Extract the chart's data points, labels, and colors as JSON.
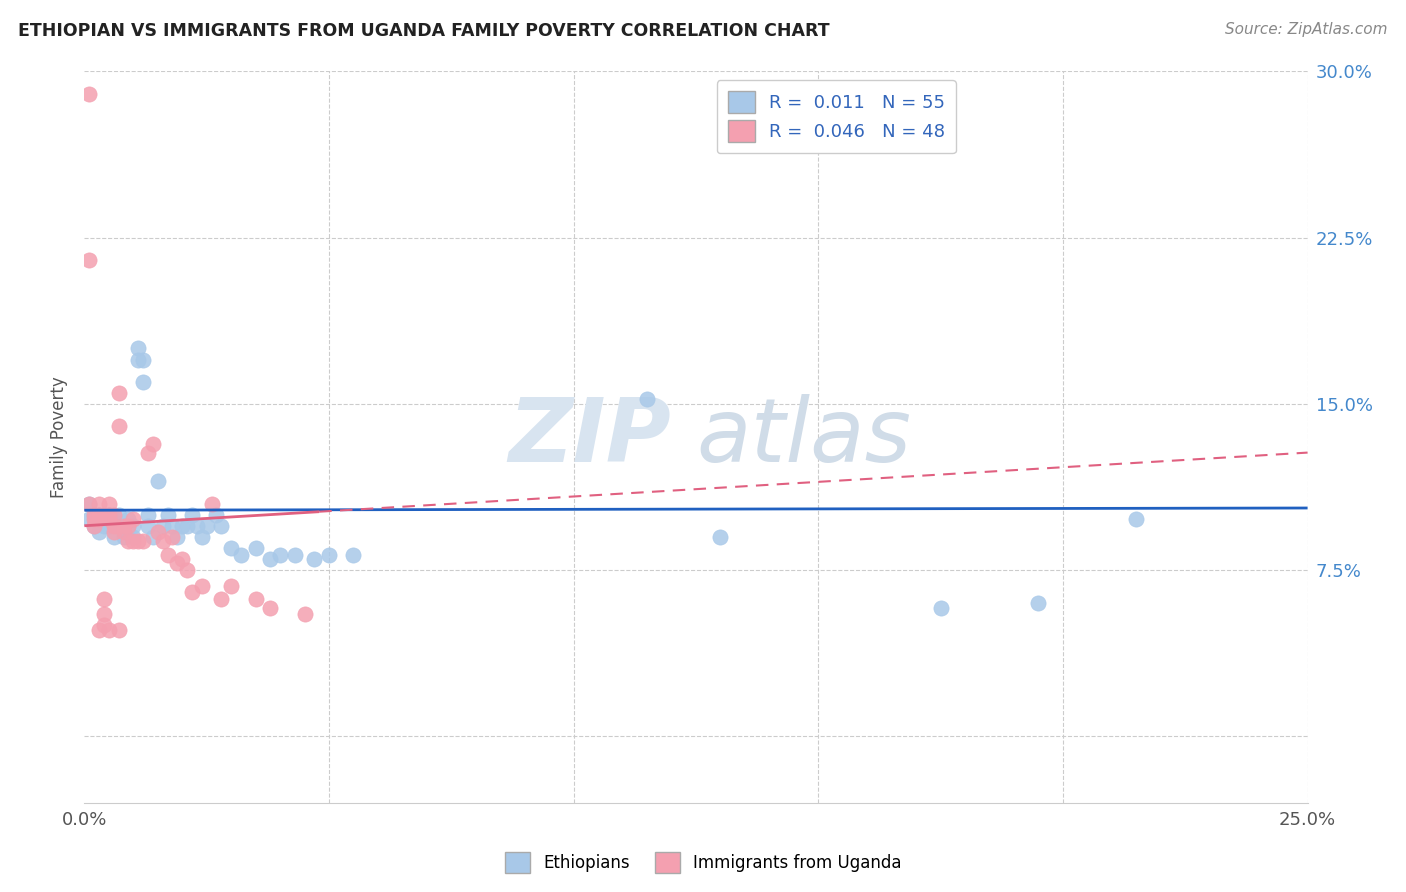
{
  "title": "ETHIOPIAN VS IMMIGRANTS FROM UGANDA FAMILY POVERTY CORRELATION CHART",
  "source": "Source: ZipAtlas.com",
  "ylabel": "Family Poverty",
  "x_min": 0.0,
  "x_max": 0.25,
  "y_min": -0.03,
  "y_max": 0.3,
  "y_ticks": [
    0.0,
    0.075,
    0.15,
    0.225,
    0.3
  ],
  "y_tick_labels_right": [
    "",
    "7.5%",
    "15.0%",
    "22.5%",
    "30.0%"
  ],
  "blue_R": "0.011",
  "blue_N": "55",
  "pink_R": "0.046",
  "pink_N": "48",
  "blue_color": "#a8c8e8",
  "pink_color": "#f4a0b0",
  "trend_blue_color": "#2060c0",
  "trend_pink_color": "#e06080",
  "watermark_zip": "ZIP",
  "watermark_atlas": "atlas",
  "legend_blue_label": "Ethiopians",
  "legend_pink_label": "Immigrants from Uganda",
  "blue_trend_start_y": 0.102,
  "blue_trend_end_y": 0.103,
  "pink_trend_start_y": 0.095,
  "pink_trend_end_y": 0.128,
  "ethiopians_x": [
    0.001,
    0.001,
    0.002,
    0.002,
    0.003,
    0.003,
    0.004,
    0.004,
    0.005,
    0.005,
    0.006,
    0.006,
    0.007,
    0.007,
    0.008,
    0.008,
    0.009,
    0.009,
    0.009,
    0.01,
    0.01,
    0.011,
    0.011,
    0.012,
    0.012,
    0.013,
    0.013,
    0.014,
    0.015,
    0.016,
    0.017,
    0.018,
    0.019,
    0.02,
    0.021,
    0.022,
    0.023,
    0.024,
    0.025,
    0.027,
    0.028,
    0.03,
    0.032,
    0.035,
    0.038,
    0.04,
    0.043,
    0.047,
    0.05,
    0.055,
    0.115,
    0.13,
    0.175,
    0.195,
    0.215
  ],
  "ethiopians_y": [
    0.105,
    0.098,
    0.1,
    0.095,
    0.1,
    0.092,
    0.098,
    0.095,
    0.1,
    0.095,
    0.098,
    0.09,
    0.1,
    0.095,
    0.095,
    0.09,
    0.098,
    0.095,
    0.092,
    0.095,
    0.09,
    0.175,
    0.17,
    0.17,
    0.16,
    0.1,
    0.095,
    0.09,
    0.115,
    0.095,
    0.1,
    0.095,
    0.09,
    0.095,
    0.095,
    0.1,
    0.095,
    0.09,
    0.095,
    0.1,
    0.095,
    0.085,
    0.082,
    0.085,
    0.08,
    0.082,
    0.082,
    0.08,
    0.082,
    0.082,
    0.152,
    0.09,
    0.058,
    0.06,
    0.098
  ],
  "uganda_x": [
    0.001,
    0.001,
    0.001,
    0.002,
    0.002,
    0.002,
    0.003,
    0.003,
    0.003,
    0.003,
    0.004,
    0.004,
    0.004,
    0.005,
    0.005,
    0.005,
    0.005,
    0.006,
    0.006,
    0.006,
    0.007,
    0.007,
    0.007,
    0.008,
    0.008,
    0.009,
    0.009,
    0.01,
    0.01,
    0.011,
    0.012,
    0.013,
    0.014,
    0.015,
    0.016,
    0.017,
    0.018,
    0.019,
    0.02,
    0.021,
    0.022,
    0.024,
    0.026,
    0.028,
    0.03,
    0.035,
    0.038,
    0.045
  ],
  "uganda_y": [
    0.29,
    0.215,
    0.105,
    0.1,
    0.098,
    0.095,
    0.105,
    0.1,
    0.098,
    0.048,
    0.062,
    0.055,
    0.05,
    0.105,
    0.1,
    0.098,
    0.048,
    0.1,
    0.095,
    0.092,
    0.155,
    0.14,
    0.048,
    0.095,
    0.092,
    0.095,
    0.088,
    0.098,
    0.088,
    0.088,
    0.088,
    0.128,
    0.132,
    0.092,
    0.088,
    0.082,
    0.09,
    0.078,
    0.08,
    0.075,
    0.065,
    0.068,
    0.105,
    0.062,
    0.068,
    0.062,
    0.058,
    0.055
  ]
}
